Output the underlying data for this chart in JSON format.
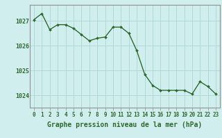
{
  "x": [
    0,
    1,
    2,
    3,
    4,
    5,
    6,
    7,
    8,
    9,
    10,
    11,
    12,
    13,
    14,
    15,
    16,
    17,
    18,
    19,
    20,
    21,
    22,
    23
  ],
  "y": [
    1027.05,
    1027.3,
    1026.65,
    1026.85,
    1026.85,
    1026.7,
    1026.45,
    1026.2,
    1026.3,
    1026.35,
    1026.75,
    1026.75,
    1026.5,
    1025.8,
    1024.85,
    1024.4,
    1024.2,
    1024.2,
    1024.2,
    1024.2,
    1024.05,
    1024.55,
    1024.35,
    1024.05
  ],
  "line_color": "#2d6a2d",
  "marker_color": "#2d6a2d",
  "bg_color": "#d0eeee",
  "grid_color": "#b0d8d8",
  "ylabel_ticks": [
    1024,
    1025,
    1026,
    1027
  ],
  "xlim": [
    -0.5,
    23.5
  ],
  "ylim": [
    1023.5,
    1027.65
  ],
  "xlabel_ticks": [
    0,
    1,
    2,
    3,
    4,
    5,
    6,
    7,
    8,
    9,
    10,
    11,
    12,
    13,
    14,
    15,
    16,
    17,
    18,
    19,
    20,
    21,
    22,
    23
  ],
  "title": "Graphe pression niveau de la mer (hPa)",
  "title_color": "#2d6a2d",
  "tick_color": "#2d6a2d",
  "axis_color": "#909090"
}
